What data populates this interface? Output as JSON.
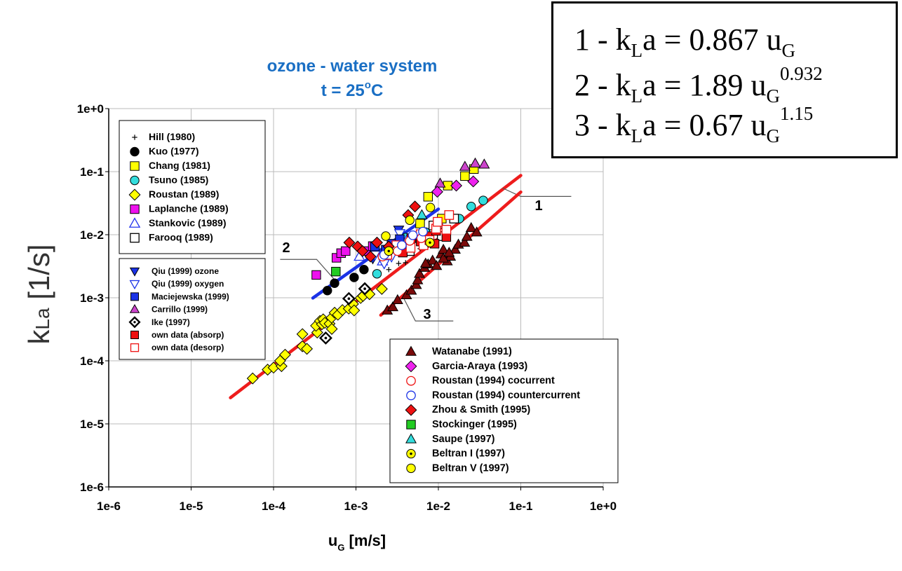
{
  "chart_data": {
    "type": "scatter",
    "title": "ozone - water system",
    "subtitle_prefix": "t = 25",
    "subtitle_sup": "o",
    "subtitle_suffix": "C",
    "ylabel_k": "k",
    "ylabel_la": "La",
    "ylabel_unit": " [1/s]",
    "xlabel_u": "u",
    "xlabel_g": "G",
    "xlabel_unit": " [m/s]",
    "xscale": "log",
    "yscale": "log",
    "xlim": [
      1e-06,
      1
    ],
    "ylim": [
      1e-06,
      1
    ],
    "grid": true,
    "x_ticks": [
      "1e-6",
      "1e-5",
      "1e-4",
      "1e-3",
      "1e-2",
      "1e-1",
      "1e+0"
    ],
    "y_ticks": [
      "1e-6",
      "1e-5",
      "1e-4",
      "1e-3",
      "1e-2",
      "1e-1",
      "1e+0"
    ],
    "fit_lines": [
      {
        "label": "1",
        "equation": "kLa = 0.867 uG",
        "color": "#ee1c1c",
        "x": [
          3e-05,
          0.1
        ],
        "y": [
          2.6e-05,
          0.087
        ]
      },
      {
        "label": "2",
        "equation": "kLa = 1.89 uG^0.932",
        "color": "#1a32e6",
        "x": [
          0.0003,
          0.01
        ],
        "y": [
          0.00099,
          0.0255
        ]
      },
      {
        "label": "3",
        "equation": "kLa = 0.67 uG^1.15",
        "color": "#ee1c1c",
        "x": [
          0.002,
          0.1
        ],
        "y": [
          0.00053,
          0.0475
        ]
      }
    ],
    "legends": [
      {
        "position": "top-left",
        "entries": [
          {
            "key": "hill",
            "name": "Hill (1980)",
            "marker": "plus",
            "color": "#000000",
            "points": [
              [
                0.0025,
                0.0028
              ],
              [
                0.0033,
                0.0035
              ],
              [
                0.004,
                0.0036
              ],
              [
                0.006,
                0.006
              ]
            ]
          },
          {
            "key": "kuo",
            "name": "Kuo (1977)",
            "marker": "circle",
            "color": "#000000",
            "points": [
              [
                0.00045,
                0.0013
              ],
              [
                0.00055,
                0.0017
              ],
              [
                0.00095,
                0.0021
              ],
              [
                0.00125,
                0.0028
              ]
            ]
          },
          {
            "key": "chang",
            "name": "Chang (1981)",
            "marker": "square",
            "color": "#ffff00",
            "points": [
              [
                0.0075,
                0.04
              ],
              [
                0.013,
                0.06
              ],
              [
                0.021,
                0.085
              ],
              [
                0.027,
                0.11
              ],
              [
                0.011,
                0.018
              ],
              [
                0.006,
                0.015
              ]
            ]
          },
          {
            "key": "tsuno",
            "name": "Tsuno (1985)",
            "marker": "circle",
            "color": "#33dddd",
            "points": [
              [
                0.0018,
                0.0024
              ],
              [
                0.0045,
                0.006
              ],
              [
                0.007,
                0.011
              ],
              [
                0.01,
                0.014
              ],
              [
                0.025,
                0.028
              ],
              [
                0.035,
                0.035
              ],
              [
                0.018,
                0.018
              ],
              [
                0.004,
                0.009
              ]
            ]
          },
          {
            "key": "roustan89",
            "name": "Roustan (1989)",
            "marker": "diamond",
            "color": "#ffff00",
            "points": [
              [
                5.58e-05,
                5.26e-05
              ],
              [
                8.48e-05,
                7.24e-05
              ],
              [
                0.0001,
                7.8e-05
              ],
              [
                0.000125,
                8.23e-05
              ],
              [
                0.00012,
                0.0001
              ],
              [
                0.000138,
                0.000125
              ],
              [
                0.000224,
                0.000265
              ],
              [
                0.000224,
                0.00017
              ],
              [
                0.000254,
                0.000155
              ],
              [
                0.000339,
                0.000281
              ],
              [
                0.000328,
                0.00036
              ],
              [
                0.000366,
                0.000429
              ],
              [
                0.000387,
                0.00038
              ],
              [
                0.0004,
                0.000455
              ],
              [
                0.000419,
                0.0004
              ],
              [
                0.000478,
                0.000388
              ],
              [
                0.000509,
                0.00032
              ],
              [
                0.000506,
                0.000483
              ],
              [
                0.000551,
                0.000579
              ],
              [
                0.000604,
                0.000538
              ],
              [
                0.000685,
                0.000638
              ],
              [
                0.000817,
                0.000673
              ],
              [
                0.000921,
                0.000798
              ],
              [
                0.00095,
                0.00063
              ],
              [
                0.00114,
                0.000991
              ],
              [
                0.00122,
                0.00107
              ],
              [
                0.00146,
                0.00114
              ],
              [
                0.00206,
                0.00138
              ]
            ]
          },
          {
            "key": "laplanche",
            "name": "Laplanche (1989)",
            "marker": "square",
            "color": "#ee11ee",
            "points": [
              [
                0.00033,
                0.0023
              ],
              [
                0.00058,
                0.0043
              ],
              [
                0.00066,
                0.0051
              ],
              [
                0.00075,
                0.0055
              ],
              [
                0.0013,
                0.0055
              ],
              [
                0.0016,
                0.0066
              ]
            ]
          },
          {
            "key": "stankovic",
            "name": "Stankovic (1989)",
            "marker": "tri_open",
            "color": "#2233ee",
            "points": [
              [
                0.0011,
                0.0045
              ],
              [
                0.0021,
                0.0038
              ],
              [
                0.0028,
                0.0065
              ],
              [
                0.0042,
                0.0085
              ]
            ]
          },
          {
            "key": "farooq",
            "name": "Farooq (1989)",
            "marker": "square_open",
            "color": "#000000",
            "points": [
              [
                0.0025,
                0.0048
              ],
              [
                0.0045,
                0.0055
              ],
              [
                0.0087,
                0.014
              ],
              [
                0.0155,
                0.018
              ],
              [
                0.011,
                0.0095
              ]
            ]
          }
        ]
      },
      {
        "position": "middle-left",
        "entries": [
          {
            "key": "qiu_ozone",
            "name": "Qiu (1999) ozone",
            "marker": "tri_down",
            "color": "#1a32e6",
            "points": [
              [
                0.0016,
                0.0042
              ],
              [
                0.0036,
                0.0055
              ],
              [
                0.0033,
                0.012
              ]
            ]
          },
          {
            "key": "qiu_oxygen",
            "name": "Qiu (1999) oxygen",
            "marker": "tri_down_open",
            "color": "#1a32e6",
            "points": [
              [
                0.0017,
                0.0048
              ],
              [
                0.0022,
                0.0035
              ],
              [
                0.0027,
                0.0045
              ],
              [
                0.0034,
                0.0105
              ]
            ]
          },
          {
            "key": "maciejewska",
            "name": "Maciejewska (1999)",
            "marker": "square",
            "color": "#1a32e6",
            "points": [
              [
                0.0017,
                0.0065
              ],
              [
                0.0023,
                0.0058
              ],
              [
                0.0027,
                0.0072
              ],
              [
                0.0034,
                0.0085
              ]
            ]
          },
          {
            "key": "carrillo",
            "name": "Carrillo (1999)",
            "marker": "triangle",
            "color": "#cc44cc",
            "points": [
              [
                0.0105,
                0.065
              ],
              [
                0.021,
                0.12
              ],
              [
                0.028,
                0.135
              ],
              [
                0.036,
                0.13
              ]
            ]
          },
          {
            "key": "ike",
            "name": "Ike (1997)",
            "marker": "diamond_dot",
            "color": "#000000",
            "points": [
              [
                0.00043,
                0.00023
              ],
              [
                0.00082,
                0.00097
              ],
              [
                0.00128,
                0.00139
              ]
            ]
          },
          {
            "key": "own_absorp",
            "name": "own data (absorp)",
            "marker": "square",
            "color": "#ee1111",
            "points": [
              [
                0.0037,
                0.0052
              ],
              [
                0.0047,
                0.0088
              ],
              [
                0.0061,
                0.0078
              ],
              [
                0.0075,
                0.0095
              ],
              [
                0.009,
                0.0072
              ],
              [
                0.0125,
                0.0092
              ],
              [
                0.0094,
                0.0115
              ]
            ]
          },
          {
            "key": "own_desorp",
            "name": "own data (desorp)",
            "marker": "square_open",
            "color": "#ee1111",
            "points": [
              [
                0.0024,
                0.0048
              ],
              [
                0.0031,
                0.0068
              ],
              [
                0.0046,
                0.0062
              ],
              [
                0.0061,
                0.0102
              ],
              [
                0.0066,
                0.0068
              ],
              [
                0.0078,
                0.0082
              ],
              [
                0.0094,
                0.0125
              ],
              [
                0.0098,
                0.016
              ],
              [
                0.0125,
                0.012
              ],
              [
                0.0135,
                0.0205
              ]
            ]
          }
        ]
      },
      {
        "position": "bottom-right",
        "entries": [
          {
            "key": "watanabe",
            "name": "Watanabe (1991)",
            "marker": "triangle",
            "color": "#7a0a0a",
            "points": [
              [
                0.0024,
                0.00063
              ],
              [
                0.0028,
                0.00071
              ],
              [
                0.0032,
                0.00092
              ],
              [
                0.0041,
                0.0011
              ],
              [
                0.0047,
                0.0013
              ],
              [
                0.0054,
                0.0016
              ],
              [
                0.0056,
                0.0019
              ],
              [
                0.0059,
                0.0024
              ],
              [
                0.0068,
                0.003
              ],
              [
                0.0075,
                0.0034
              ],
              [
                0.0085,
                0.0039
              ],
              [
                0.0095,
                0.0032
              ],
              [
                0.0108,
                0.0049
              ],
              [
                0.0115,
                0.0058
              ],
              [
                0.0128,
                0.0038
              ],
              [
                0.014,
                0.0045
              ],
              [
                0.016,
                0.0058
              ],
              [
                0.0175,
                0.007
              ],
              [
                0.0208,
                0.0075
              ],
              [
                0.0222,
                0.0093
              ],
              [
                0.025,
                0.0128
              ],
              [
                0.0292,
                0.0109
              ],
              [
                0.0115,
                0.0042
              ],
              [
                0.007,
                0.0035
              ],
              [
                0.0135,
                0.0052
              ]
            ]
          },
          {
            "key": "garcia",
            "name": "Garcia-Araya (1993)",
            "marker": "diamond",
            "color": "#ee22ee",
            "points": [
              [
                0.0097,
                0.048
              ],
              [
                0.0165,
                0.06
              ],
              [
                0.0265,
                0.07
              ]
            ]
          },
          {
            "key": "roustan94_co",
            "name": "Roustan (1994) cocurrent",
            "marker": "circle_open",
            "color": "#ee1111",
            "points": [
              [
                0.0021,
                0.0045
              ],
              [
                0.0032,
                0.0055
              ],
              [
                0.0045,
                0.008
              ],
              [
                0.0062,
                0.0088
              ]
            ]
          },
          {
            "key": "roustan94_counter",
            "name": "Roustan (1994) countercurrent",
            "marker": "circle_open",
            "color": "#1a32e6",
            "points": [
              [
                0.0022,
                0.0048
              ],
              [
                0.0036,
                0.0068
              ],
              [
                0.0049,
                0.0098
              ],
              [
                0.0065,
                0.0112
              ]
            ]
          },
          {
            "key": "zhou",
            "name": "Zhou & Smith (1995)",
            "marker": "diamond",
            "color": "#ee1111",
            "points": [
              [
                0.00083,
                0.0075
              ],
              [
                0.00105,
                0.0065
              ],
              [
                0.0012,
                0.0055
              ],
              [
                0.0015,
                0.0045
              ],
              [
                0.0018,
                0.0075
              ],
              [
                0.0025,
                0.0065
              ],
              [
                0.0043,
                0.0205
              ],
              [
                0.0052,
                0.028
              ]
            ]
          },
          {
            "key": "stockinger",
            "name": "Stockinger (1995)",
            "marker": "square",
            "color": "#22cc22",
            "points": [
              [
                0.00057,
                0.0026
              ]
            ]
          },
          {
            "key": "saupe",
            "name": "Saupe (1997)",
            "marker": "triangle",
            "color": "#33dddd",
            "points": [
              [
                0.0063,
                0.0205
              ]
            ]
          },
          {
            "key": "beltran_i",
            "name": "Beltran I (1997)",
            "marker": "circle_dot",
            "color": "#ffff00",
            "points": [
              [
                0.0025,
                0.0055
              ],
              [
                0.0079,
                0.0075
              ]
            ]
          },
          {
            "key": "beltran_v",
            "name": "Beltran V (1997)",
            "marker": "circle",
            "color": "#ffff00",
            "points": [
              [
                0.0023,
                0.0095
              ],
              [
                0.0045,
                0.017
              ],
              [
                0.008,
                0.027
              ]
            ]
          }
        ]
      }
    ]
  },
  "equation_box": {
    "lines": [
      {
        "num": "1",
        "k": "k",
        "L": "L",
        "a": "a = 0.867 u",
        "G": "G",
        "exp": ""
      },
      {
        "num": "2",
        "k": "k",
        "L": "L",
        "a": "a = 1.89 u",
        "G": "G",
        "exp": "0.932"
      },
      {
        "num": "3",
        "k": "k",
        "L": "L",
        "a": "a = 0.67 u",
        "G": "G",
        "exp": "1.15"
      }
    ]
  }
}
